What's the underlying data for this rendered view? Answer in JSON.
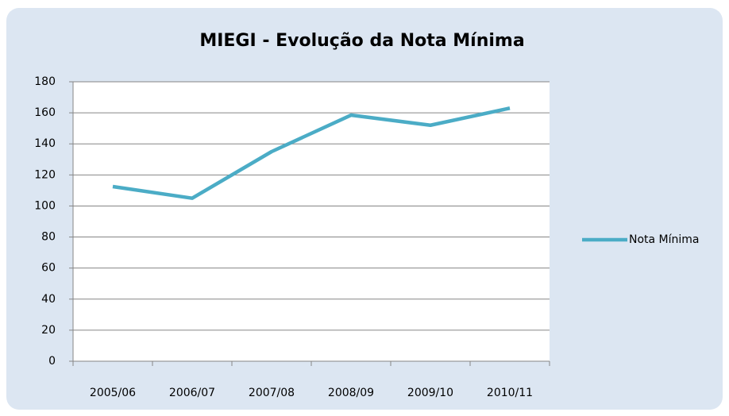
{
  "chart_data": {
    "type": "line",
    "title": "MIEGI - Evolução da Nota Mínima",
    "categories": [
      "2005/06",
      "2006/07",
      "2007/08",
      "2008/09",
      "2009/10",
      "2010/11"
    ],
    "series": [
      {
        "name": "Nota Mínima",
        "color": "#4bacc6",
        "values": [
          112.5,
          105,
          135,
          158.5,
          152,
          163
        ]
      }
    ],
    "ylim": [
      0,
      180
    ],
    "yticks": [
      0,
      20,
      40,
      60,
      80,
      100,
      120,
      140,
      160,
      180
    ],
    "grid": true,
    "legend": "right"
  }
}
